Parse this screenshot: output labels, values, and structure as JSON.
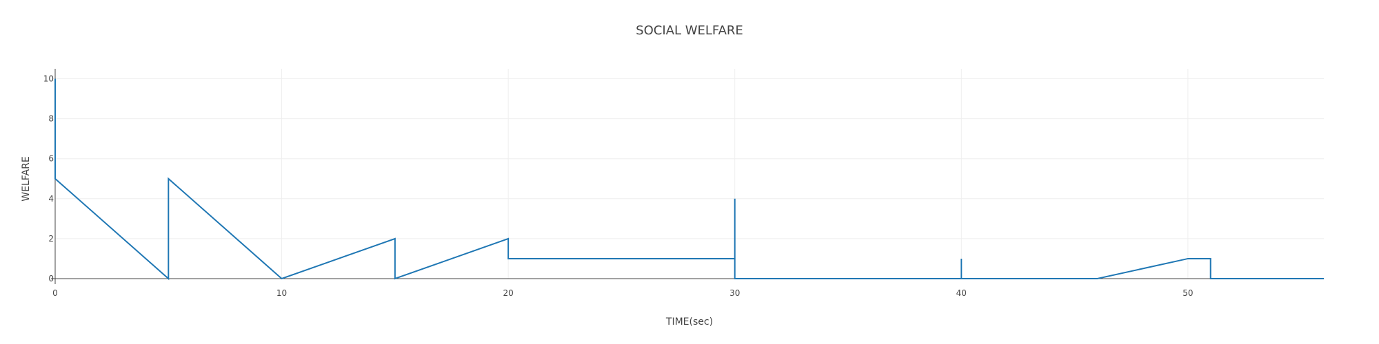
{
  "chart_data": {
    "type": "line",
    "title": "SOCIAL WELFARE",
    "xlabel": "TIME(sec)",
    "ylabel": "WELFARE",
    "xlim": [
      0,
      56
    ],
    "ylim": [
      0,
      10.5
    ],
    "x_ticks": [
      0,
      10,
      20,
      30,
      40,
      50
    ],
    "y_ticks": [
      0,
      2,
      4,
      6,
      8,
      10
    ],
    "grid": true,
    "line_color": "#1f77b4",
    "series": [
      {
        "x": [
          0,
          0,
          5,
          5,
          10,
          15,
          15,
          20,
          20,
          30,
          30,
          30,
          40,
          40,
          40,
          46,
          50,
          51,
          51,
          56
        ],
        "y": [
          10,
          5,
          0,
          5,
          0,
          2,
          0,
          2,
          1,
          1,
          4,
          0,
          0,
          1,
          0,
          0,
          1,
          1,
          0,
          0
        ]
      }
    ]
  }
}
